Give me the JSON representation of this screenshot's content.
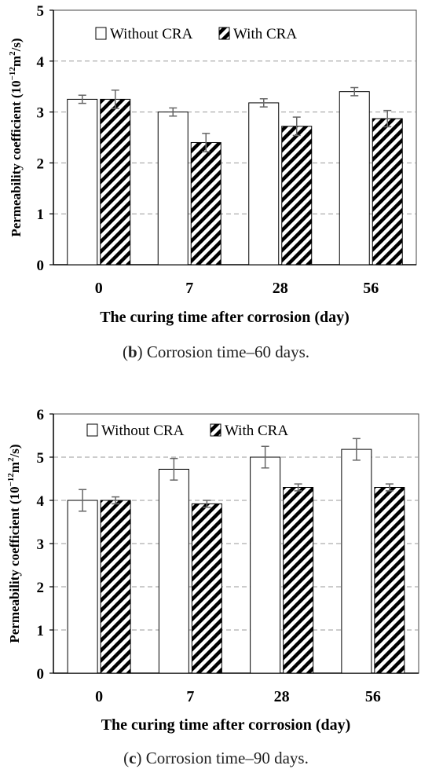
{
  "chart_data": [
    {
      "type": "bar",
      "panel_letter": "b",
      "caption": "Corrosion time–60 days.",
      "categories": [
        "0",
        "7",
        "28",
        "56"
      ],
      "series": [
        {
          "name": "Without CRA",
          "values": [
            3.25,
            3.0,
            3.18,
            3.4
          ],
          "errors": [
            0.08,
            0.08,
            0.08,
            0.08
          ],
          "pattern": "open"
        },
        {
          "name": "With CRA",
          "values": [
            3.25,
            2.4,
            2.72,
            2.87
          ],
          "errors": [
            0.18,
            0.18,
            0.18,
            0.16
          ],
          "pattern": "hatch"
        }
      ],
      "xlabel": "The curing time after corrosion (day)",
      "ylabel": "Permeability coefficient (10",
      "ylabel_exp": "−12",
      "ylabel_tail": "m",
      "ylabel_exp2": "2",
      "ylabel_end": "/s)",
      "ylim": [
        0,
        5
      ],
      "yticks": [
        0,
        1,
        2,
        3,
        4,
        5
      ],
      "grid": true,
      "legend_position": "top"
    },
    {
      "type": "bar",
      "panel_letter": "c",
      "caption": "Corrosion time–90 days.",
      "categories": [
        "0",
        "7",
        "28",
        "56"
      ],
      "series": [
        {
          "name": "Without CRA",
          "values": [
            4.0,
            4.72,
            5.0,
            5.18
          ],
          "errors": [
            0.25,
            0.25,
            0.25,
            0.25
          ],
          "pattern": "open"
        },
        {
          "name": "With CRA",
          "values": [
            4.0,
            3.92,
            4.3,
            4.3
          ],
          "errors": [
            0.08,
            0.08,
            0.08,
            0.08
          ],
          "pattern": "hatch"
        }
      ],
      "xlabel": "The curing time after corrosion (day)",
      "ylabel": "Permeability coefficient (10",
      "ylabel_exp": "−12",
      "ylabel_tail": "m",
      "ylabel_exp2": "2",
      "ylabel_end": "/s)",
      "ylim": [
        0,
        6
      ],
      "yticks": [
        0,
        1,
        2,
        3,
        4,
        5,
        6
      ],
      "grid": true,
      "legend_position": "top"
    }
  ]
}
